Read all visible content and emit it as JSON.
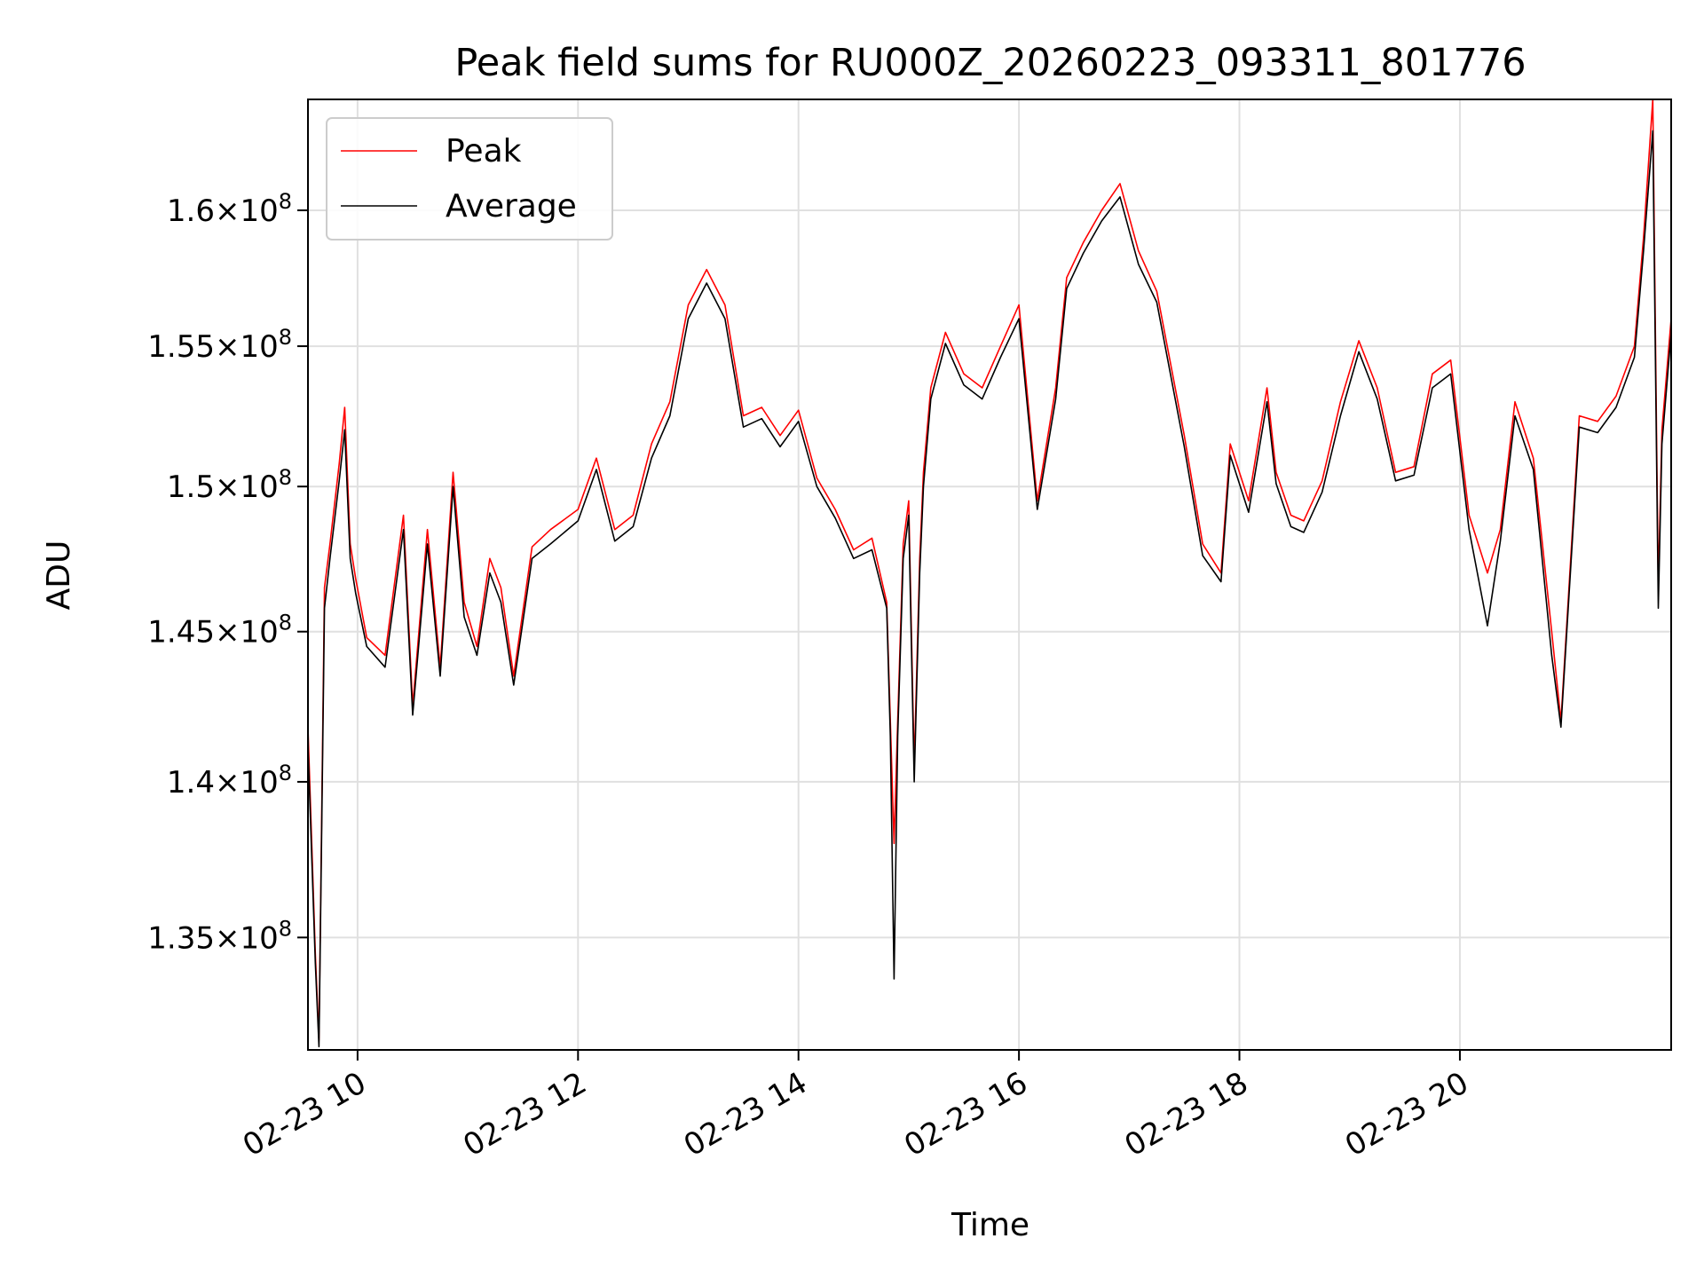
{
  "chart_data": {
    "type": "line",
    "title": "Peak field sums for RU000Z_20260223_093311_801776",
    "xlabel": "Time",
    "ylabel": "ADU",
    "y_scale": "log",
    "ylim": [
      131500000,
      164200000
    ],
    "xlim": [
      "2026-02-23 09:33",
      "2026-02-23 21:55"
    ],
    "grid": true,
    "legend_position": "upper-left",
    "x_ticks": [
      {
        "time": "2026-02-23 10:00",
        "label": "02-23 10"
      },
      {
        "time": "2026-02-23 12:00",
        "label": "02-23 12"
      },
      {
        "time": "2026-02-23 14:00",
        "label": "02-23 14"
      },
      {
        "time": "2026-02-23 16:00",
        "label": "02-23 16"
      },
      {
        "time": "2026-02-23 18:00",
        "label": "02-23 18"
      },
      {
        "time": "2026-02-23 20:00",
        "label": "02-23 20"
      }
    ],
    "y_ticks": [
      {
        "value": 135000000,
        "mantissa": "1.35",
        "exponent": "8"
      },
      {
        "value": 140000000,
        "mantissa": "1.4",
        "exponent": "8"
      },
      {
        "value": 145000000,
        "mantissa": "1.45",
        "exponent": "8"
      },
      {
        "value": 150000000,
        "mantissa": "1.5",
        "exponent": "8"
      },
      {
        "value": 155000000,
        "mantissa": "1.55",
        "exponent": "8"
      },
      {
        "value": 160000000,
        "mantissa": "1.6",
        "exponent": "8"
      }
    ],
    "times": [
      "2026-02-23 09:33",
      "2026-02-23 09:37",
      "2026-02-23 09:39",
      "2026-02-23 09:42",
      "2026-02-23 09:45",
      "2026-02-23 09:50",
      "2026-02-23 09:53",
      "2026-02-23 09:56",
      "2026-02-23 09:59",
      "2026-02-23 10:05",
      "2026-02-23 10:15",
      "2026-02-23 10:25",
      "2026-02-23 10:30",
      "2026-02-23 10:38",
      "2026-02-23 10:45",
      "2026-02-23 10:52",
      "2026-02-23 10:58",
      "2026-02-23 11:05",
      "2026-02-23 11:12",
      "2026-02-23 11:18",
      "2026-02-23 11:25",
      "2026-02-23 11:35",
      "2026-02-23 11:45",
      "2026-02-23 12:00",
      "2026-02-23 12:10",
      "2026-02-23 12:20",
      "2026-02-23 12:30",
      "2026-02-23 12:40",
      "2026-02-23 12:50",
      "2026-02-23 13:00",
      "2026-02-23 13:10",
      "2026-02-23 13:20",
      "2026-02-23 13:30",
      "2026-02-23 13:40",
      "2026-02-23 13:50",
      "2026-02-23 14:00",
      "2026-02-23 14:10",
      "2026-02-23 14:20",
      "2026-02-23 14:30",
      "2026-02-23 14:40",
      "2026-02-23 14:48",
      "2026-02-23 14:50",
      "2026-02-23 14:52",
      "2026-02-23 14:54",
      "2026-02-23 14:57",
      "2026-02-23 15:00",
      "2026-02-23 15:03",
      "2026-02-23 15:06",
      "2026-02-23 15:08",
      "2026-02-23 15:12",
      "2026-02-23 15:20",
      "2026-02-23 15:30",
      "2026-02-23 15:40",
      "2026-02-23 15:50",
      "2026-02-23 16:00",
      "2026-02-23 16:10",
      "2026-02-23 16:20",
      "2026-02-23 16:26",
      "2026-02-23 16:35",
      "2026-02-23 16:45",
      "2026-02-23 16:55",
      "2026-02-23 17:05",
      "2026-02-23 17:15",
      "2026-02-23 17:30",
      "2026-02-23 17:40",
      "2026-02-23 17:50",
      "2026-02-23 17:55",
      "2026-02-23 18:05",
      "2026-02-23 18:15",
      "2026-02-23 18:20",
      "2026-02-23 18:28",
      "2026-02-23 18:35",
      "2026-02-23 18:45",
      "2026-02-23 18:55",
      "2026-02-23 19:05",
      "2026-02-23 19:15",
      "2026-02-23 19:25",
      "2026-02-23 19:35",
      "2026-02-23 19:45",
      "2026-02-23 19:55",
      "2026-02-23 20:05",
      "2026-02-23 20:15",
      "2026-02-23 20:22",
      "2026-02-23 20:30",
      "2026-02-23 20:40",
      "2026-02-23 20:50",
      "2026-02-23 20:55",
      "2026-02-23 21:05",
      "2026-02-23 21:15",
      "2026-02-23 21:25",
      "2026-02-23 21:35",
      "2026-02-23 21:40",
      "2026-02-23 21:45",
      "2026-02-23 21:48",
      "2026-02-23 21:50",
      "2026-02-23 21:55"
    ],
    "series": [
      {
        "name": "Peak",
        "color": "#ff0000",
        "values": [
          141800000,
          134500000,
          131800000,
          146500000,
          148000000,
          150800000,
          152800000,
          148000000,
          146800000,
          144800000,
          144200000,
          149000000,
          142500000,
          148500000,
          143800000,
          150500000,
          146000000,
          144500000,
          147500000,
          146500000,
          143500000,
          147900000,
          148500000,
          149200000,
          151000000,
          148500000,
          149000000,
          151500000,
          153000000,
          156500000,
          157800000,
          156500000,
          152500000,
          152800000,
          151800000,
          152700000,
          150300000,
          149200000,
          147800000,
          148200000,
          146000000,
          142000000,
          138000000,
          142000000,
          148000000,
          149500000,
          140500000,
          147500000,
          150500000,
          153500000,
          155500000,
          154000000,
          153500000,
          155000000,
          156500000,
          149500000,
          153500000,
          157500000,
          158800000,
          160000000,
          161000000,
          158500000,
          157000000,
          151800000,
          148000000,
          147000000,
          151500000,
          149500000,
          153500000,
          150500000,
          149000000,
          148800000,
          150200000,
          153000000,
          155200000,
          153500000,
          150500000,
          150700000,
          154000000,
          154500000,
          149000000,
          147000000,
          148500000,
          153000000,
          151000000,
          145000000,
          142000000,
          152500000,
          152300000,
          153200000,
          155000000,
          159000000,
          164200000,
          146500000,
          152000000,
          156000000
        ]
      },
      {
        "name": "Average",
        "color": "#000000",
        "values": [
          141200000,
          134200000,
          131600000,
          145800000,
          147500000,
          150200000,
          152000000,
          147500000,
          146300000,
          144500000,
          143800000,
          148500000,
          142200000,
          148000000,
          143500000,
          150000000,
          145500000,
          144200000,
          147000000,
          146000000,
          143200000,
          147500000,
          148000000,
          148800000,
          150600000,
          148100000,
          148600000,
          151000000,
          152500000,
          156000000,
          157300000,
          156000000,
          152100000,
          152400000,
          151400000,
          152300000,
          150000000,
          148900000,
          147500000,
          147800000,
          145800000,
          141500000,
          133700000,
          141500000,
          147500000,
          149000000,
          140000000,
          147000000,
          150000000,
          153100000,
          155100000,
          153600000,
          153100000,
          154600000,
          156000000,
          149200000,
          153100000,
          157100000,
          158400000,
          159600000,
          160500000,
          158000000,
          156600000,
          151400000,
          147600000,
          146700000,
          151100000,
          149100000,
          153000000,
          150100000,
          148600000,
          148400000,
          149800000,
          152500000,
          154800000,
          153100000,
          150200000,
          150400000,
          153500000,
          154000000,
          148500000,
          145200000,
          148100000,
          152500000,
          150600000,
          144200000,
          141800000,
          152100000,
          151900000,
          152800000,
          154600000,
          158500000,
          163000000,
          145800000,
          151500000,
          155500000
        ]
      }
    ]
  }
}
